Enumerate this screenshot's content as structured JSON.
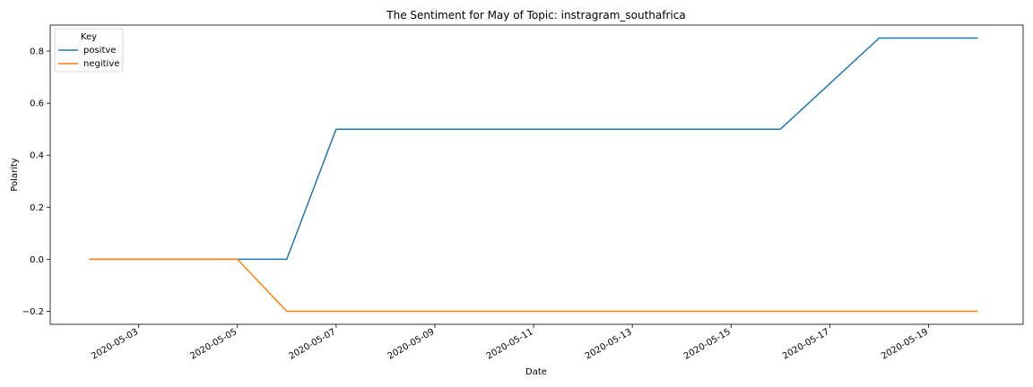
{
  "chart_data": {
    "type": "line",
    "title": "The Sentiment for May of Topic: instragram_southafrica",
    "xlabel": "Date",
    "ylabel": "Polarity",
    "x": [
      "2020-05-02",
      "2020-05-03",
      "2020-05-04",
      "2020-05-05",
      "2020-05-06",
      "2020-05-07",
      "2020-05-08",
      "2020-05-09",
      "2020-05-10",
      "2020-05-11",
      "2020-05-12",
      "2020-05-13",
      "2020-05-14",
      "2020-05-15",
      "2020-05-16",
      "2020-05-17",
      "2020-05-18",
      "2020-05-19",
      "2020-05-20"
    ],
    "xlim": [
      "2020-05-01T05:00",
      "2020-05-20T22:00"
    ],
    "xticks": [
      "2020-05-03",
      "2020-05-05",
      "2020-05-07",
      "2020-05-09",
      "2020-05-11",
      "2020-05-13",
      "2020-05-15",
      "2020-05-17",
      "2020-05-19"
    ],
    "ylim": [
      -0.25,
      0.9
    ],
    "yticks": [
      -0.2,
      0.0,
      0.2,
      0.4,
      0.6,
      0.8
    ],
    "ytick_labels": [
      "−0.2",
      "0.0",
      "0.2",
      "0.4",
      "0.6",
      "0.8"
    ],
    "grid": false,
    "legend": {
      "title": "Key",
      "placement": "top-left"
    },
    "series": [
      {
        "name": "positve",
        "color": "#1f77b4",
        "values": [
          0,
          0,
          0,
          0,
          0,
          0.5,
          0.5,
          0.5,
          0.5,
          0.5,
          0.5,
          0.5,
          0.5,
          0.5,
          0.5,
          0.675,
          0.85,
          0.85,
          0.85
        ]
      },
      {
        "name": "negitive",
        "color": "#ff7f0e",
        "values": [
          0,
          0,
          0,
          0,
          -0.2,
          -0.2,
          -0.2,
          -0.2,
          -0.2,
          -0.2,
          -0.2,
          -0.2,
          -0.2,
          -0.2,
          -0.2,
          -0.2,
          -0.2,
          -0.2,
          -0.2
        ]
      }
    ]
  }
}
